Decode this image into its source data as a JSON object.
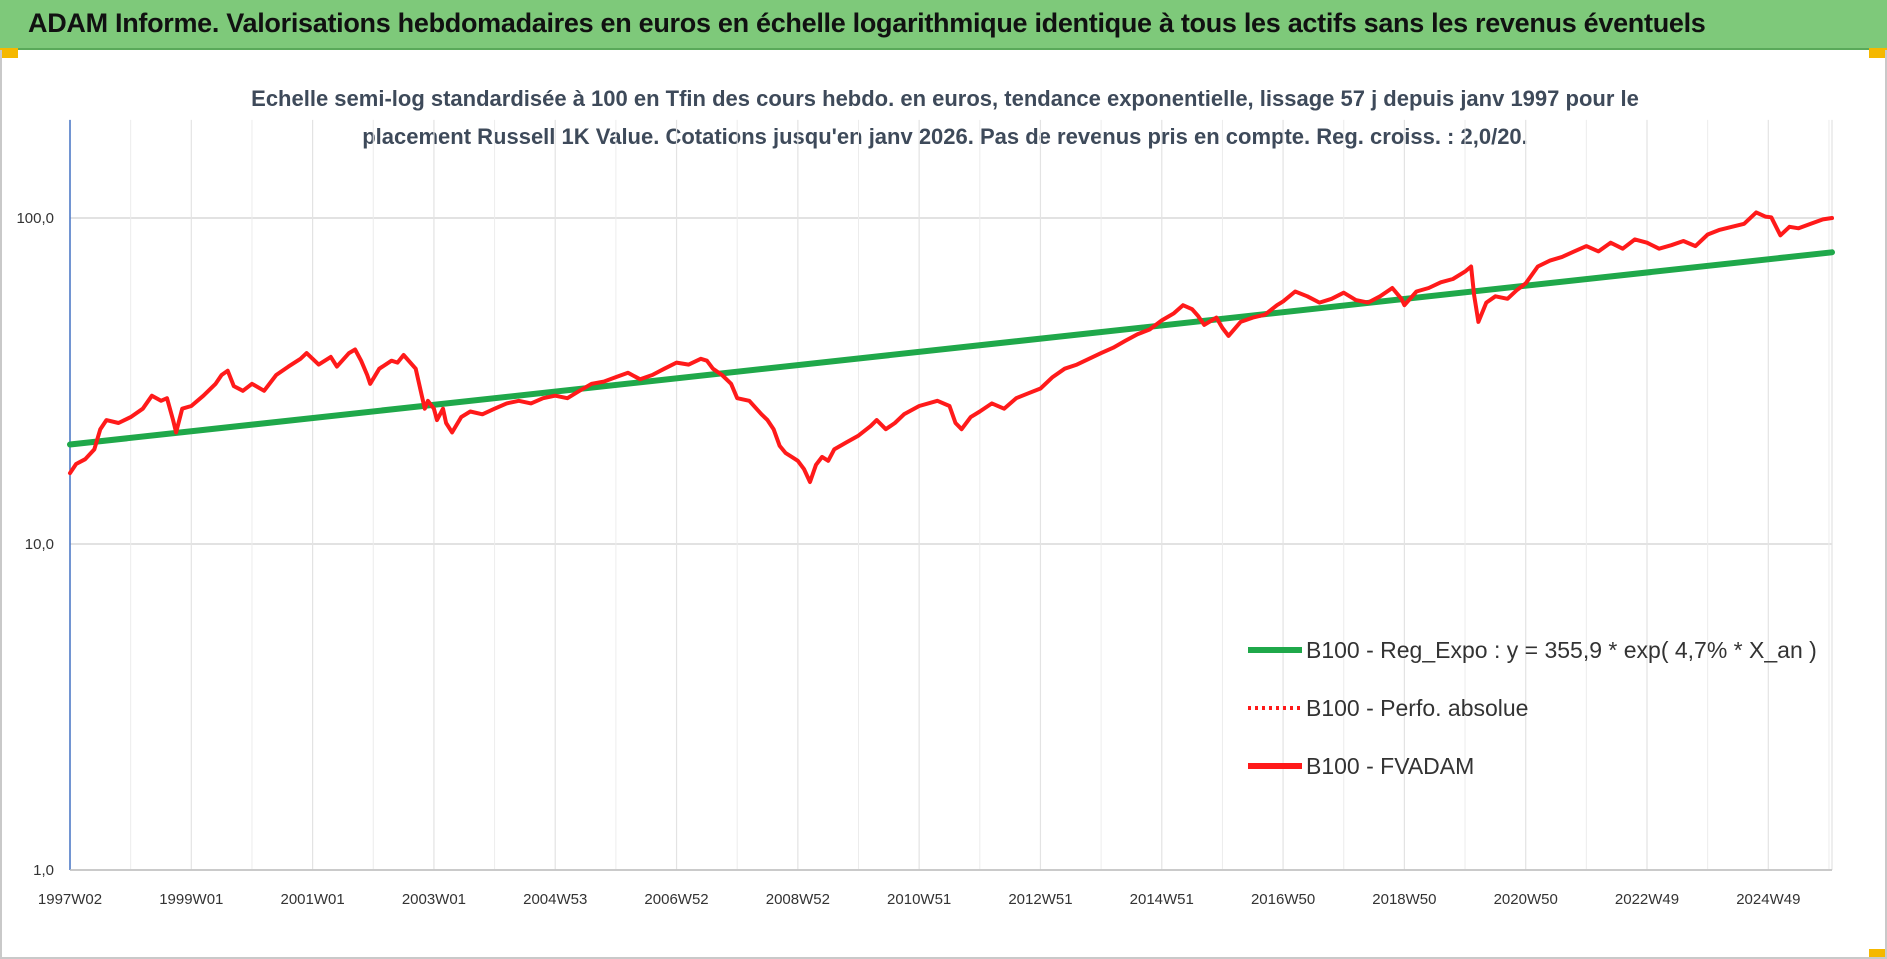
{
  "header": {
    "title": "ADAM Informe. Valorisations hebdomadaires en euros en échelle logarithmique identique à tous les actifs sans les revenus éventuels"
  },
  "chart_data": {
    "type": "line",
    "title_line1": "Echelle semi-log standardisée à 100 en Tfin des cours hebdo. en euros, tendance exponentielle, lissage 57 j depuis janv 1997 pour le",
    "title_line2": "placement Russell 1K Value. Cotations jusqu'en janv 2026. Pas de revenus pris en compte. Reg. croiss. : 2,0/20.",
    "y_scale": "log",
    "ylim": [
      1,
      200
    ],
    "y_ticks": [
      {
        "value": 100,
        "label": "100,0"
      },
      {
        "value": 10,
        "label": "10,0"
      },
      {
        "value": 1,
        "label": "1,0"
      }
    ],
    "x_range": [
      1997.0,
      2026.05
    ],
    "x_ticks": [
      {
        "t": 1997.0,
        "label": "1997W02"
      },
      {
        "t": 1999.0,
        "label": "1999W01"
      },
      {
        "t": 2001.0,
        "label": "2001W01"
      },
      {
        "t": 2003.0,
        "label": "2003W01"
      },
      {
        "t": 2005.0,
        "label": "2004W53"
      },
      {
        "t": 2007.0,
        "label": "2006W52"
      },
      {
        "t": 2009.0,
        "label": "2008W52"
      },
      {
        "t": 2011.0,
        "label": "2010W51"
      },
      {
        "t": 2013.0,
        "label": "2012W51"
      },
      {
        "t": 2015.0,
        "label": "2014W51"
      },
      {
        "t": 2017.0,
        "label": "2016W50"
      },
      {
        "t": 2019.0,
        "label": "2018W50"
      },
      {
        "t": 2021.0,
        "label": "2020W50"
      },
      {
        "t": 2023.0,
        "label": "2022W49"
      },
      {
        "t": 2025.0,
        "label": "2024W49"
      }
    ],
    "grid": true,
    "legend_position": "bottom-right",
    "series": [
      {
        "name": "B100 - Reg_Expo : y = 355,9 * exp( 4,7% *  X_an )",
        "color": "#1fa84a",
        "style": "solid",
        "points": [
          [
            1997.0,
            20.2
          ],
          [
            2026.05,
            78.5
          ]
        ]
      },
      {
        "name": "B100 - Perfo. absolue",
        "color": "#ff1a1a",
        "style": "dotted",
        "points": []
      },
      {
        "name": "B100 - FVADAM",
        "color": "#ff1a1a",
        "style": "solid",
        "points": [
          [
            1997.0,
            16.5
          ],
          [
            1997.1,
            17.6
          ],
          [
            1997.25,
            18.2
          ],
          [
            1997.4,
            19.5
          ],
          [
            1997.5,
            22.5
          ],
          [
            1997.6,
            24.0
          ],
          [
            1997.8,
            23.5
          ],
          [
            1998.0,
            24.5
          ],
          [
            1998.2,
            26.0
          ],
          [
            1998.35,
            28.5
          ],
          [
            1998.5,
            27.5
          ],
          [
            1998.6,
            28.0
          ],
          [
            1998.7,
            24.0
          ],
          [
            1998.75,
            22.0
          ],
          [
            1998.85,
            26.0
          ],
          [
            1999.0,
            26.5
          ],
          [
            1999.2,
            28.5
          ],
          [
            1999.4,
            31.0
          ],
          [
            1999.5,
            33.0
          ],
          [
            1999.6,
            34.0
          ],
          [
            1999.7,
            30.5
          ],
          [
            1999.85,
            29.5
          ],
          [
            2000.0,
            31.0
          ],
          [
            2000.2,
            29.5
          ],
          [
            2000.4,
            33.0
          ],
          [
            2000.6,
            35.0
          ],
          [
            2000.8,
            37.0
          ],
          [
            2000.9,
            38.5
          ],
          [
            2001.1,
            35.5
          ],
          [
            2001.3,
            37.5
          ],
          [
            2001.4,
            35.0
          ],
          [
            2001.6,
            38.5
          ],
          [
            2001.7,
            39.5
          ],
          [
            2001.8,
            36.5
          ],
          [
            2001.9,
            33.0
          ],
          [
            2001.95,
            31.0
          ],
          [
            2002.1,
            34.5
          ],
          [
            2002.3,
            36.5
          ],
          [
            2002.4,
            36.0
          ],
          [
            2002.5,
            38.0
          ],
          [
            2002.7,
            34.5
          ],
          [
            2002.8,
            28.5
          ],
          [
            2002.85,
            26.0
          ],
          [
            2002.9,
            27.5
          ],
          [
            2003.0,
            26.0
          ],
          [
            2003.05,
            24.0
          ],
          [
            2003.15,
            26.0
          ],
          [
            2003.2,
            23.5
          ],
          [
            2003.3,
            22.0
          ],
          [
            2003.45,
            24.5
          ],
          [
            2003.6,
            25.5
          ],
          [
            2003.8,
            25.0
          ],
          [
            2004.0,
            26.0
          ],
          [
            2004.2,
            27.0
          ],
          [
            2004.4,
            27.5
          ],
          [
            2004.6,
            27.0
          ],
          [
            2004.8,
            28.0
          ],
          [
            2005.0,
            28.5
          ],
          [
            2005.2,
            28.0
          ],
          [
            2005.4,
            29.5
          ],
          [
            2005.6,
            31.0
          ],
          [
            2005.8,
            31.5
          ],
          [
            2006.0,
            32.5
          ],
          [
            2006.2,
            33.5
          ],
          [
            2006.4,
            32.0
          ],
          [
            2006.6,
            33.0
          ],
          [
            2006.8,
            34.5
          ],
          [
            2007.0,
            36.0
          ],
          [
            2007.2,
            35.5
          ],
          [
            2007.4,
            37.0
          ],
          [
            2007.5,
            36.5
          ],
          [
            2007.6,
            34.5
          ],
          [
            2007.75,
            33.0
          ],
          [
            2007.9,
            31.0
          ],
          [
            2008.0,
            28.0
          ],
          [
            2008.2,
            27.5
          ],
          [
            2008.4,
            25.0
          ],
          [
            2008.5,
            24.0
          ],
          [
            2008.6,
            22.5
          ],
          [
            2008.7,
            20.0
          ],
          [
            2008.8,
            19.0
          ],
          [
            2008.9,
            18.5
          ],
          [
            2009.0,
            18.0
          ],
          [
            2009.1,
            17.0
          ],
          [
            2009.2,
            15.5
          ],
          [
            2009.3,
            17.5
          ],
          [
            2009.4,
            18.5
          ],
          [
            2009.5,
            18.0
          ],
          [
            2009.6,
            19.5
          ],
          [
            2009.8,
            20.5
          ],
          [
            2010.0,
            21.5
          ],
          [
            2010.2,
            23.0
          ],
          [
            2010.3,
            24.0
          ],
          [
            2010.45,
            22.5
          ],
          [
            2010.6,
            23.5
          ],
          [
            2010.75,
            25.0
          ],
          [
            2011.0,
            26.5
          ],
          [
            2011.3,
            27.5
          ],
          [
            2011.5,
            26.5
          ],
          [
            2011.6,
            23.5
          ],
          [
            2011.7,
            22.5
          ],
          [
            2011.85,
            24.5
          ],
          [
            2012.0,
            25.5
          ],
          [
            2012.2,
            27.0
          ],
          [
            2012.4,
            26.0
          ],
          [
            2012.6,
            28.0
          ],
          [
            2012.8,
            29.0
          ],
          [
            2013.0,
            30.0
          ],
          [
            2013.2,
            32.5
          ],
          [
            2013.4,
            34.5
          ],
          [
            2013.6,
            35.5
          ],
          [
            2013.8,
            37.0
          ],
          [
            2014.0,
            38.5
          ],
          [
            2014.2,
            40.0
          ],
          [
            2014.4,
            42.0
          ],
          [
            2014.6,
            44.0
          ],
          [
            2014.8,
            45.5
          ],
          [
            2015.0,
            48.5
          ],
          [
            2015.2,
            51.0
          ],
          [
            2015.35,
            54.0
          ],
          [
            2015.5,
            52.5
          ],
          [
            2015.6,
            50.0
          ],
          [
            2015.7,
            47.0
          ],
          [
            2015.9,
            49.5
          ],
          [
            2016.0,
            46.0
          ],
          [
            2016.1,
            43.5
          ],
          [
            2016.3,
            48.0
          ],
          [
            2016.5,
            49.5
          ],
          [
            2016.7,
            50.5
          ],
          [
            2016.9,
            54.0
          ],
          [
            2017.0,
            55.5
          ],
          [
            2017.2,
            59.5
          ],
          [
            2017.4,
            57.5
          ],
          [
            2017.6,
            55.0
          ],
          [
            2017.8,
            56.5
          ],
          [
            2018.0,
            59.0
          ],
          [
            2018.2,
            56.0
          ],
          [
            2018.4,
            55.0
          ],
          [
            2018.6,
            57.5
          ],
          [
            2018.8,
            61.0
          ],
          [
            2018.95,
            56.5
          ],
          [
            2019.0,
            54.0
          ],
          [
            2019.2,
            59.5
          ],
          [
            2019.4,
            61.0
          ],
          [
            2019.6,
            63.5
          ],
          [
            2019.8,
            65.0
          ],
          [
            2020.0,
            68.5
          ],
          [
            2020.1,
            71.0
          ],
          [
            2020.15,
            58.0
          ],
          [
            2020.22,
            48.0
          ],
          [
            2020.35,
            55.0
          ],
          [
            2020.5,
            57.5
          ],
          [
            2020.7,
            56.5
          ],
          [
            2020.85,
            60.0
          ],
          [
            2021.0,
            63.0
          ],
          [
            2021.2,
            71.0
          ],
          [
            2021.4,
            74.0
          ],
          [
            2021.6,
            76.0
          ],
          [
            2021.8,
            79.0
          ],
          [
            2022.0,
            82.0
          ],
          [
            2022.2,
            79.0
          ],
          [
            2022.4,
            84.0
          ],
          [
            2022.6,
            80.5
          ],
          [
            2022.8,
            86.0
          ],
          [
            2023.0,
            84.0
          ],
          [
            2023.2,
            80.5
          ],
          [
            2023.4,
            82.5
          ],
          [
            2023.6,
            85.0
          ],
          [
            2023.8,
            82.0
          ],
          [
            2024.0,
            89.0
          ],
          [
            2024.2,
            92.0
          ],
          [
            2024.4,
            94.0
          ],
          [
            2024.6,
            96.0
          ],
          [
            2024.8,
            104.0
          ],
          [
            2024.95,
            101.0
          ],
          [
            2025.05,
            100.5
          ],
          [
            2025.2,
            88.5
          ],
          [
            2025.35,
            94.0
          ],
          [
            2025.5,
            93.0
          ],
          [
            2025.7,
            96.0
          ],
          [
            2025.9,
            99.0
          ],
          [
            2026.05,
            100.0
          ]
        ]
      }
    ]
  }
}
